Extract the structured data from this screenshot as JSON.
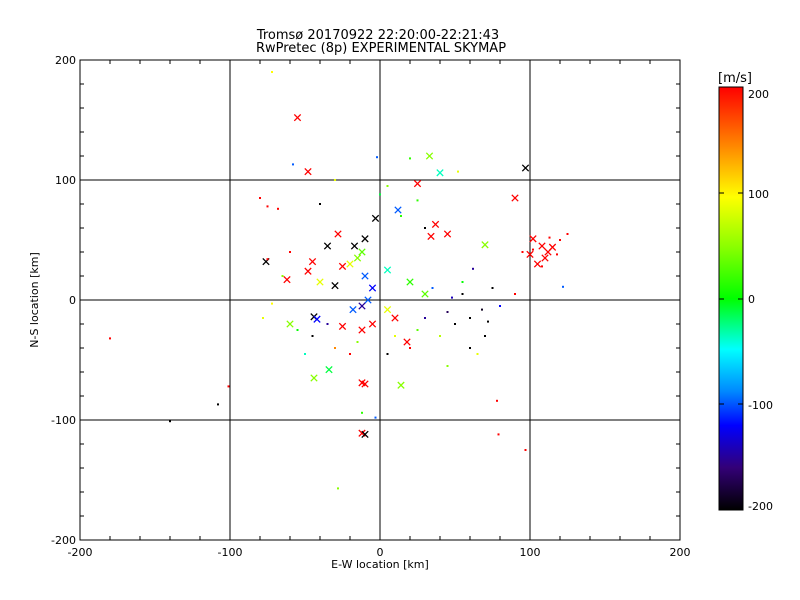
{
  "chart_data": {
    "type": "scatter",
    "title": "Tromsø 20170922 22:20:00-22:21:43",
    "subtitle": "RwPretec (8p) EXPERIMENTAL SKYMAP",
    "xlabel": "E-W location [km]",
    "ylabel": "N-S location [km]",
    "xlim": [
      -200,
      200
    ],
    "ylim": [
      -200,
      200
    ],
    "xticks": [
      "-200",
      "-100",
      "0",
      "100",
      "200"
    ],
    "yticks": [
      "-200",
      "-100",
      "0",
      "100",
      "200"
    ],
    "grid": true,
    "colorbar": {
      "label": "[m/s]",
      "range": [
        -200,
        200
      ],
      "ticks": [
        "200",
        "100",
        "0",
        "-100",
        "-200"
      ]
    },
    "series": [
      {
        "marker": "x",
        "points": [
          {
            "x": -55,
            "y": 152,
            "v": 200
          },
          {
            "x": -48,
            "y": 107,
            "v": 200
          },
          {
            "x": 97,
            "y": 110,
            "v": -200
          },
          {
            "x": 33,
            "y": 120,
            "v": 60
          },
          {
            "x": 40,
            "y": 106,
            "v": -30
          },
          {
            "x": 25,
            "y": 97,
            "v": 200
          },
          {
            "x": 90,
            "y": 85,
            "v": 200
          },
          {
            "x": 12,
            "y": 75,
            "v": -100
          },
          {
            "x": -3,
            "y": 68,
            "v": -200
          },
          {
            "x": 37,
            "y": 63,
            "v": 200
          },
          {
            "x": 34,
            "y": 53,
            "v": 200
          },
          {
            "x": 45,
            "y": 55,
            "v": 200
          },
          {
            "x": 70,
            "y": 46,
            "v": 60
          },
          {
            "x": -28,
            "y": 55,
            "v": 200
          },
          {
            "x": -17,
            "y": 45,
            "v": -200
          },
          {
            "x": -35,
            "y": 45,
            "v": -200
          },
          {
            "x": -45,
            "y": 32,
            "v": 200
          },
          {
            "x": -48,
            "y": 24,
            "v": 200
          },
          {
            "x": -76,
            "y": 32,
            "v": -200
          },
          {
            "x": -10,
            "y": 51,
            "v": -200
          },
          {
            "x": -40,
            "y": 15,
            "v": 100
          },
          {
            "x": -30,
            "y": 12,
            "v": -200
          },
          {
            "x": -25,
            "y": 28,
            "v": 200
          },
          {
            "x": -20,
            "y": 30,
            "v": 100
          },
          {
            "x": -15,
            "y": 35,
            "v": 60
          },
          {
            "x": -12,
            "y": 40,
            "v": 40
          },
          {
            "x": -10,
            "y": 20,
            "v": -100
          },
          {
            "x": -5,
            "y": 10,
            "v": -120
          },
          {
            "x": -8,
            "y": 0,
            "v": -100
          },
          {
            "x": -12,
            "y": -5,
            "v": -150
          },
          {
            "x": -18,
            "y": -8,
            "v": -100
          },
          {
            "x": -44,
            "y": -14,
            "v": -200
          },
          {
            "x": -42,
            "y": -16,
            "v": -120
          },
          {
            "x": -60,
            "y": -20,
            "v": 60
          },
          {
            "x": -25,
            "y": -22,
            "v": 200
          },
          {
            "x": -12,
            "y": -25,
            "v": 200
          },
          {
            "x": -5,
            "y": -20,
            "v": 200
          },
          {
            "x": 5,
            "y": -8,
            "v": 100
          },
          {
            "x": 10,
            "y": -15,
            "v": 200
          },
          {
            "x": 18,
            "y": -35,
            "v": 200
          },
          {
            "x": -44,
            "y": -65,
            "v": 60
          },
          {
            "x": -34,
            "y": -58,
            "v": -10
          },
          {
            "x": -12,
            "y": -69,
            "v": 200
          },
          {
            "x": -10,
            "y": -70,
            "v": 200
          },
          {
            "x": 14,
            "y": -71,
            "v": 60
          },
          {
            "x": -12,
            "y": -111,
            "v": 200
          },
          {
            "x": -10,
            "y": -112,
            "v": -200
          },
          {
            "x": 102,
            "y": 51,
            "v": 200
          },
          {
            "x": 108,
            "y": 45,
            "v": 200
          },
          {
            "x": 100,
            "y": 38,
            "v": 200
          },
          {
            "x": 112,
            "y": 40,
            "v": 200
          },
          {
            "x": 105,
            "y": 30,
            "v": 200
          },
          {
            "x": 110,
            "y": 35,
            "v": 200
          },
          {
            "x": 115,
            "y": 44,
            "v": 200
          },
          {
            "x": -62,
            "y": 17,
            "v": 200
          },
          {
            "x": 5,
            "y": 25,
            "v": -30
          },
          {
            "x": 20,
            "y": 15,
            "v": 20
          },
          {
            "x": 30,
            "y": 5,
            "v": 40
          }
        ]
      },
      {
        "marker": "dot",
        "points": [
          {
            "x": -72,
            "y": 190,
            "v": 110
          },
          {
            "x": -58,
            "y": 113,
            "v": -100
          },
          {
            "x": -2,
            "y": 119,
            "v": -100
          },
          {
            "x": 20,
            "y": 118,
            "v": 20
          },
          {
            "x": 52,
            "y": 107,
            "v": 100
          },
          {
            "x": -80,
            "y": 85,
            "v": 200
          },
          {
            "x": -75,
            "y": 78,
            "v": 200
          },
          {
            "x": -68,
            "y": 76,
            "v": 200
          },
          {
            "x": -108,
            "y": -87,
            "v": -200
          },
          {
            "x": -140,
            "y": -101,
            "v": -200
          },
          {
            "x": -180,
            "y": -32,
            "v": 200
          },
          {
            "x": -101,
            "y": -72,
            "v": 200
          },
          {
            "x": 97,
            "y": -125,
            "v": 200
          },
          {
            "x": 79,
            "y": -112,
            "v": 200
          },
          {
            "x": 78,
            "y": -84,
            "v": 200
          },
          {
            "x": -28,
            "y": -157,
            "v": 60
          },
          {
            "x": -12,
            "y": -94,
            "v": 20
          },
          {
            "x": -3,
            "y": -98,
            "v": -100
          },
          {
            "x": 122,
            "y": 11,
            "v": -100
          },
          {
            "x": 90,
            "y": 5,
            "v": 200
          },
          {
            "x": 45,
            "y": -55,
            "v": 60
          },
          {
            "x": 60,
            "y": -40,
            "v": -200
          },
          {
            "x": 65,
            "y": -45,
            "v": 100
          },
          {
            "x": -72,
            "y": -3,
            "v": 110
          },
          {
            "x": -78,
            "y": -15,
            "v": 100
          },
          {
            "x": -75,
            "y": 34,
            "v": 200
          },
          {
            "x": -65,
            "y": 20,
            "v": 60
          },
          {
            "x": -55,
            "y": -25,
            "v": 0
          },
          {
            "x": -60,
            "y": 40,
            "v": 200
          },
          {
            "x": -50,
            "y": -45,
            "v": -30
          },
          {
            "x": 120,
            "y": 50,
            "v": 200
          },
          {
            "x": 125,
            "y": 55,
            "v": 200
          },
          {
            "x": 118,
            "y": 38,
            "v": 200
          },
          {
            "x": 95,
            "y": 40,
            "v": 200
          },
          {
            "x": 113,
            "y": 52,
            "v": 200
          },
          {
            "x": 108,
            "y": 28,
            "v": 200
          },
          {
            "x": 102,
            "y": 42,
            "v": 200
          },
          {
            "x": 14,
            "y": 70,
            "v": 20
          },
          {
            "x": 5,
            "y": 95,
            "v": 60
          },
          {
            "x": 25,
            "y": 83,
            "v": 20
          },
          {
            "x": -30,
            "y": 100,
            "v": 100
          },
          {
            "x": 0,
            "y": 88,
            "v": -10
          },
          {
            "x": -40,
            "y": 80,
            "v": -200
          },
          {
            "x": 30,
            "y": 60,
            "v": -200
          },
          {
            "x": 62,
            "y": 26,
            "v": -150
          },
          {
            "x": 75,
            "y": 10,
            "v": -200
          },
          {
            "x": 80,
            "y": -5,
            "v": -120
          },
          {
            "x": 50,
            "y": -20,
            "v": -200
          },
          {
            "x": 40,
            "y": -30,
            "v": 80
          },
          {
            "x": 55,
            "y": 15,
            "v": 0
          },
          {
            "x": 70,
            "y": -30,
            "v": -200
          },
          {
            "x": 45,
            "y": -10,
            "v": -170
          },
          {
            "x": 60,
            "y": -15,
            "v": -200
          },
          {
            "x": 68,
            "y": -8,
            "v": -190
          },
          {
            "x": 72,
            "y": -18,
            "v": -200
          },
          {
            "x": 55,
            "y": 5,
            "v": -200
          },
          {
            "x": 48,
            "y": 2,
            "v": -140
          },
          {
            "x": 35,
            "y": 10,
            "v": -100
          },
          {
            "x": 30,
            "y": -15,
            "v": -150
          },
          {
            "x": 25,
            "y": -25,
            "v": 40
          },
          {
            "x": 20,
            "y": -40,
            "v": 200
          },
          {
            "x": 10,
            "y": -30,
            "v": 100
          },
          {
            "x": -20,
            "y": -45,
            "v": 200
          },
          {
            "x": -30,
            "y": -40,
            "v": 150
          },
          {
            "x": -15,
            "y": -35,
            "v": 60
          },
          {
            "x": 5,
            "y": -45,
            "v": -200
          },
          {
            "x": -45,
            "y": -30,
            "v": -200
          },
          {
            "x": -35,
            "y": -20,
            "v": -150
          }
        ]
      }
    ]
  }
}
